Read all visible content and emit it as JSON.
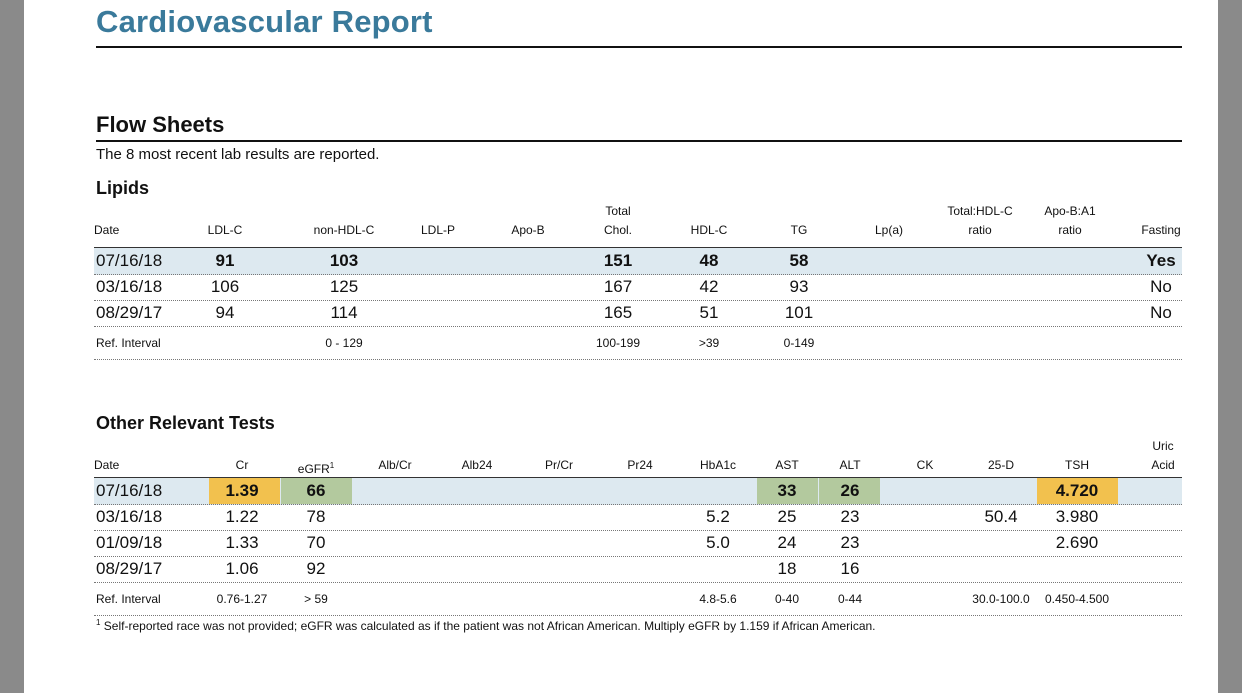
{
  "title": "Cardiovascular Report",
  "flow": {
    "heading": "Flow Sheets",
    "description": "The 8 most recent lab results are reported."
  },
  "lipids": {
    "heading": "Lipids",
    "columns": [
      [
        "",
        "Date"
      ],
      [
        "",
        "LDL-C"
      ],
      [
        "",
        "non-HDL-C"
      ],
      [
        "",
        "LDL-P"
      ],
      [
        "",
        "Apo-B"
      ],
      [
        "Total",
        "Chol."
      ],
      [
        "",
        "HDL-C"
      ],
      [
        "",
        "TG"
      ],
      [
        "",
        "Lp(a)"
      ],
      [
        "Total:HDL-C",
        "ratio"
      ],
      [
        "Apo-B:A1",
        "ratio"
      ],
      [
        "",
        "Fasting"
      ]
    ],
    "rows": [
      [
        "07/16/18",
        "91",
        "103",
        "",
        "",
        "151",
        "48",
        "58",
        "",
        "",
        "",
        "Yes"
      ],
      [
        "03/16/18",
        "106",
        "125",
        "",
        "",
        "167",
        "42",
        "93",
        "",
        "",
        "",
        "No"
      ],
      [
        "08/29/17",
        "94",
        "114",
        "",
        "",
        "165",
        "51",
        "101",
        "",
        "",
        "",
        "No"
      ]
    ],
    "ref": [
      "Ref. Interval",
      "",
      "0 - 129",
      "",
      "",
      "100-199",
      ">39",
      "0-149",
      "",
      "",
      "",
      ""
    ]
  },
  "other": {
    "heading": "Other Relevant Tests",
    "columns": [
      [
        "",
        "Date"
      ],
      [
        "",
        "Cr"
      ],
      [
        "",
        "eGFR"
      ],
      [
        "",
        "Alb/Cr"
      ],
      [
        "",
        "Alb24"
      ],
      [
        "",
        "Pr/Cr"
      ],
      [
        "",
        "Pr24"
      ],
      [
        "",
        "HbA1c"
      ],
      [
        "",
        "AST"
      ],
      [
        "",
        "ALT"
      ],
      [
        "",
        "CK"
      ],
      [
        "",
        "25-D"
      ],
      [
        "",
        "TSH"
      ],
      [
        "Uric",
        "Acid"
      ]
    ],
    "egfr_sup": "1",
    "rows": [
      [
        "07/16/18",
        "1.39",
        "66",
        "",
        "",
        "",
        "",
        "",
        "33",
        "26",
        "",
        "",
        "4.720",
        ""
      ],
      [
        "03/16/18",
        "1.22",
        "78",
        "",
        "",
        "",
        "",
        "5.2",
        "25",
        "23",
        "",
        "50.4",
        "3.980",
        ""
      ],
      [
        "01/09/18",
        "1.33",
        "70",
        "",
        "",
        "",
        "",
        "5.0",
        "24",
        "23",
        "",
        "",
        "2.690",
        ""
      ],
      [
        "08/29/17",
        "1.06",
        "92",
        "",
        "",
        "",
        "",
        "",
        "18",
        "16",
        "",
        "",
        "",
        ""
      ]
    ],
    "ref": [
      "Ref. Interval",
      "0.76-1.27",
      "> 59",
      "",
      "",
      "",
      "",
      "4.8-5.6",
      "0-40",
      "0-44",
      "",
      "30.0-100.0",
      "0.450-4.500",
      ""
    ],
    "flag_colors": {
      "high": "#f2c14e",
      "low": "#b3c99e"
    }
  },
  "footnote": {
    "marker": "1",
    "text": "Self-reported race was not provided; eGFR was calculated as if the patient was not African American. Multiply eGFR by 1.159 if African American."
  }
}
